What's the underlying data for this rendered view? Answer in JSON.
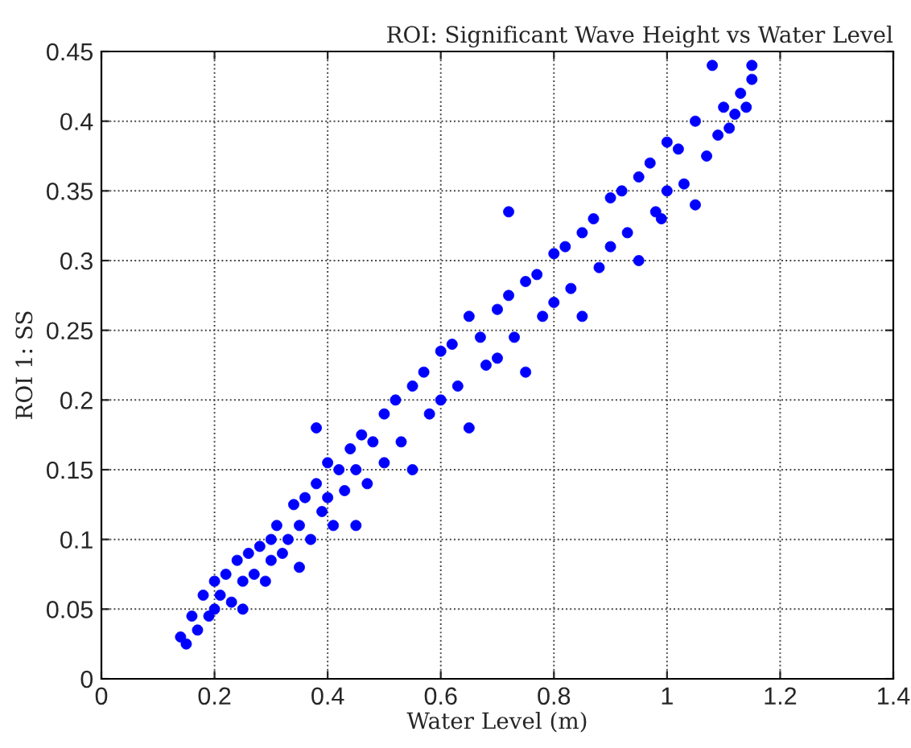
{
  "chart_data": {
    "type": "scatter",
    "title": "ROI: Significant Wave Height vs Water Level",
    "xlabel": "Water Level (m)",
    "ylabel": "ROI 1: SS",
    "series": [
      {
        "color": "#0000ff",
        "x": [
          0.14,
          0.15,
          0.16,
          0.17,
          0.18,
          0.19,
          0.2,
          0.2,
          0.21,
          0.22,
          0.23,
          0.24,
          0.25,
          0.25,
          0.26,
          0.27,
          0.28,
          0.29,
          0.3,
          0.3,
          0.31,
          0.32,
          0.33,
          0.34,
          0.35,
          0.35,
          0.36,
          0.37,
          0.38,
          0.39,
          0.4,
          0.4,
          0.41,
          0.42,
          0.43,
          0.44,
          0.45,
          0.45,
          0.46,
          0.47,
          0.48,
          0.5,
          0.5,
          0.52,
          0.53,
          0.55,
          0.55,
          0.57,
          0.58,
          0.6,
          0.6,
          0.62,
          0.63,
          0.65,
          0.65,
          0.67,
          0.68,
          0.7,
          0.7,
          0.72,
          0.73,
          0.75,
          0.75,
          0.77,
          0.78,
          0.8,
          0.8,
          0.82,
          0.83,
          0.85,
          0.85,
          0.87,
          0.88,
          0.9,
          0.9,
          0.92,
          0.93,
          0.95,
          0.95,
          0.97,
          0.98,
          1.0,
          1.0,
          1.02,
          1.03,
          1.05,
          1.05,
          1.07,
          1.08,
          1.09,
          1.1,
          1.11,
          1.12,
          1.13,
          1.14,
          1.15,
          1.15,
          0.38,
          0.72,
          0.99
        ],
        "values": [
          0.03,
          0.025,
          0.045,
          0.035,
          0.06,
          0.045,
          0.07,
          0.05,
          0.06,
          0.075,
          0.055,
          0.085,
          0.05,
          0.07,
          0.09,
          0.075,
          0.095,
          0.07,
          0.1,
          0.085,
          0.11,
          0.09,
          0.1,
          0.125,
          0.08,
          0.11,
          0.13,
          0.1,
          0.14,
          0.12,
          0.155,
          0.13,
          0.11,
          0.15,
          0.135,
          0.165,
          0.11,
          0.15,
          0.175,
          0.14,
          0.17,
          0.19,
          0.155,
          0.2,
          0.17,
          0.21,
          0.15,
          0.22,
          0.19,
          0.235,
          0.2,
          0.24,
          0.21,
          0.26,
          0.18,
          0.245,
          0.225,
          0.265,
          0.23,
          0.275,
          0.245,
          0.285,
          0.22,
          0.29,
          0.26,
          0.305,
          0.27,
          0.31,
          0.28,
          0.32,
          0.26,
          0.33,
          0.295,
          0.345,
          0.31,
          0.35,
          0.32,
          0.36,
          0.3,
          0.37,
          0.335,
          0.385,
          0.35,
          0.38,
          0.355,
          0.4,
          0.34,
          0.375,
          0.44,
          0.39,
          0.41,
          0.395,
          0.405,
          0.42,
          0.41,
          0.44,
          0.43,
          0.18,
          0.335,
          0.33
        ]
      }
    ],
    "xlim": [
      0,
      1.4
    ],
    "ylim": [
      0,
      0.45
    ],
    "xticks": [
      0,
      0.2,
      0.4,
      0.6,
      0.8,
      1,
      1.2,
      1.4
    ],
    "yticks": [
      0,
      0.05,
      0.1,
      0.15,
      0.2,
      0.25,
      0.3,
      0.35,
      0.4,
      0.45
    ],
    "grid": true,
    "marker": "circle",
    "legend": false
  }
}
